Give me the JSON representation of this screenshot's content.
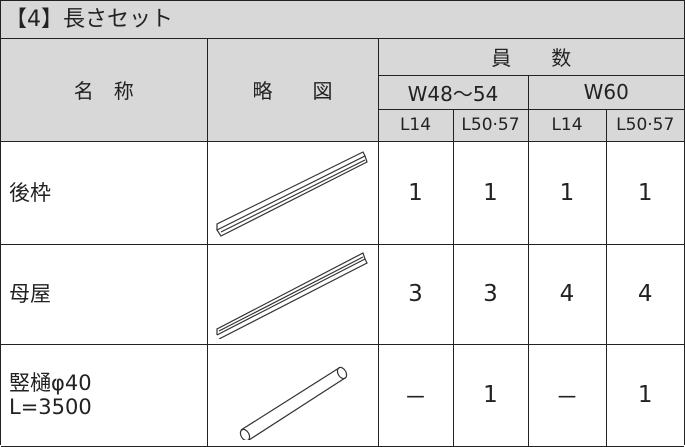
{
  "header": {
    "title": "【4】長さセット"
  },
  "table": {
    "columns": {
      "name": "名　称",
      "diagram": "略　　図",
      "quantity": "員　　数",
      "groups": [
        "W48～54",
        "W60"
      ],
      "lengths": [
        "L14",
        "L50·57",
        "L14",
        "L50·57"
      ]
    },
    "rows": [
      {
        "name": "後枠",
        "values": [
          1,
          1,
          1,
          1
        ]
      },
      {
        "name": "母屋",
        "values": [
          3,
          3,
          4,
          4
        ]
      },
      {
        "name": "竪樋φ40\nL=3500",
        "values": [
          "－",
          1,
          "－",
          1
        ]
      }
    ]
  }
}
